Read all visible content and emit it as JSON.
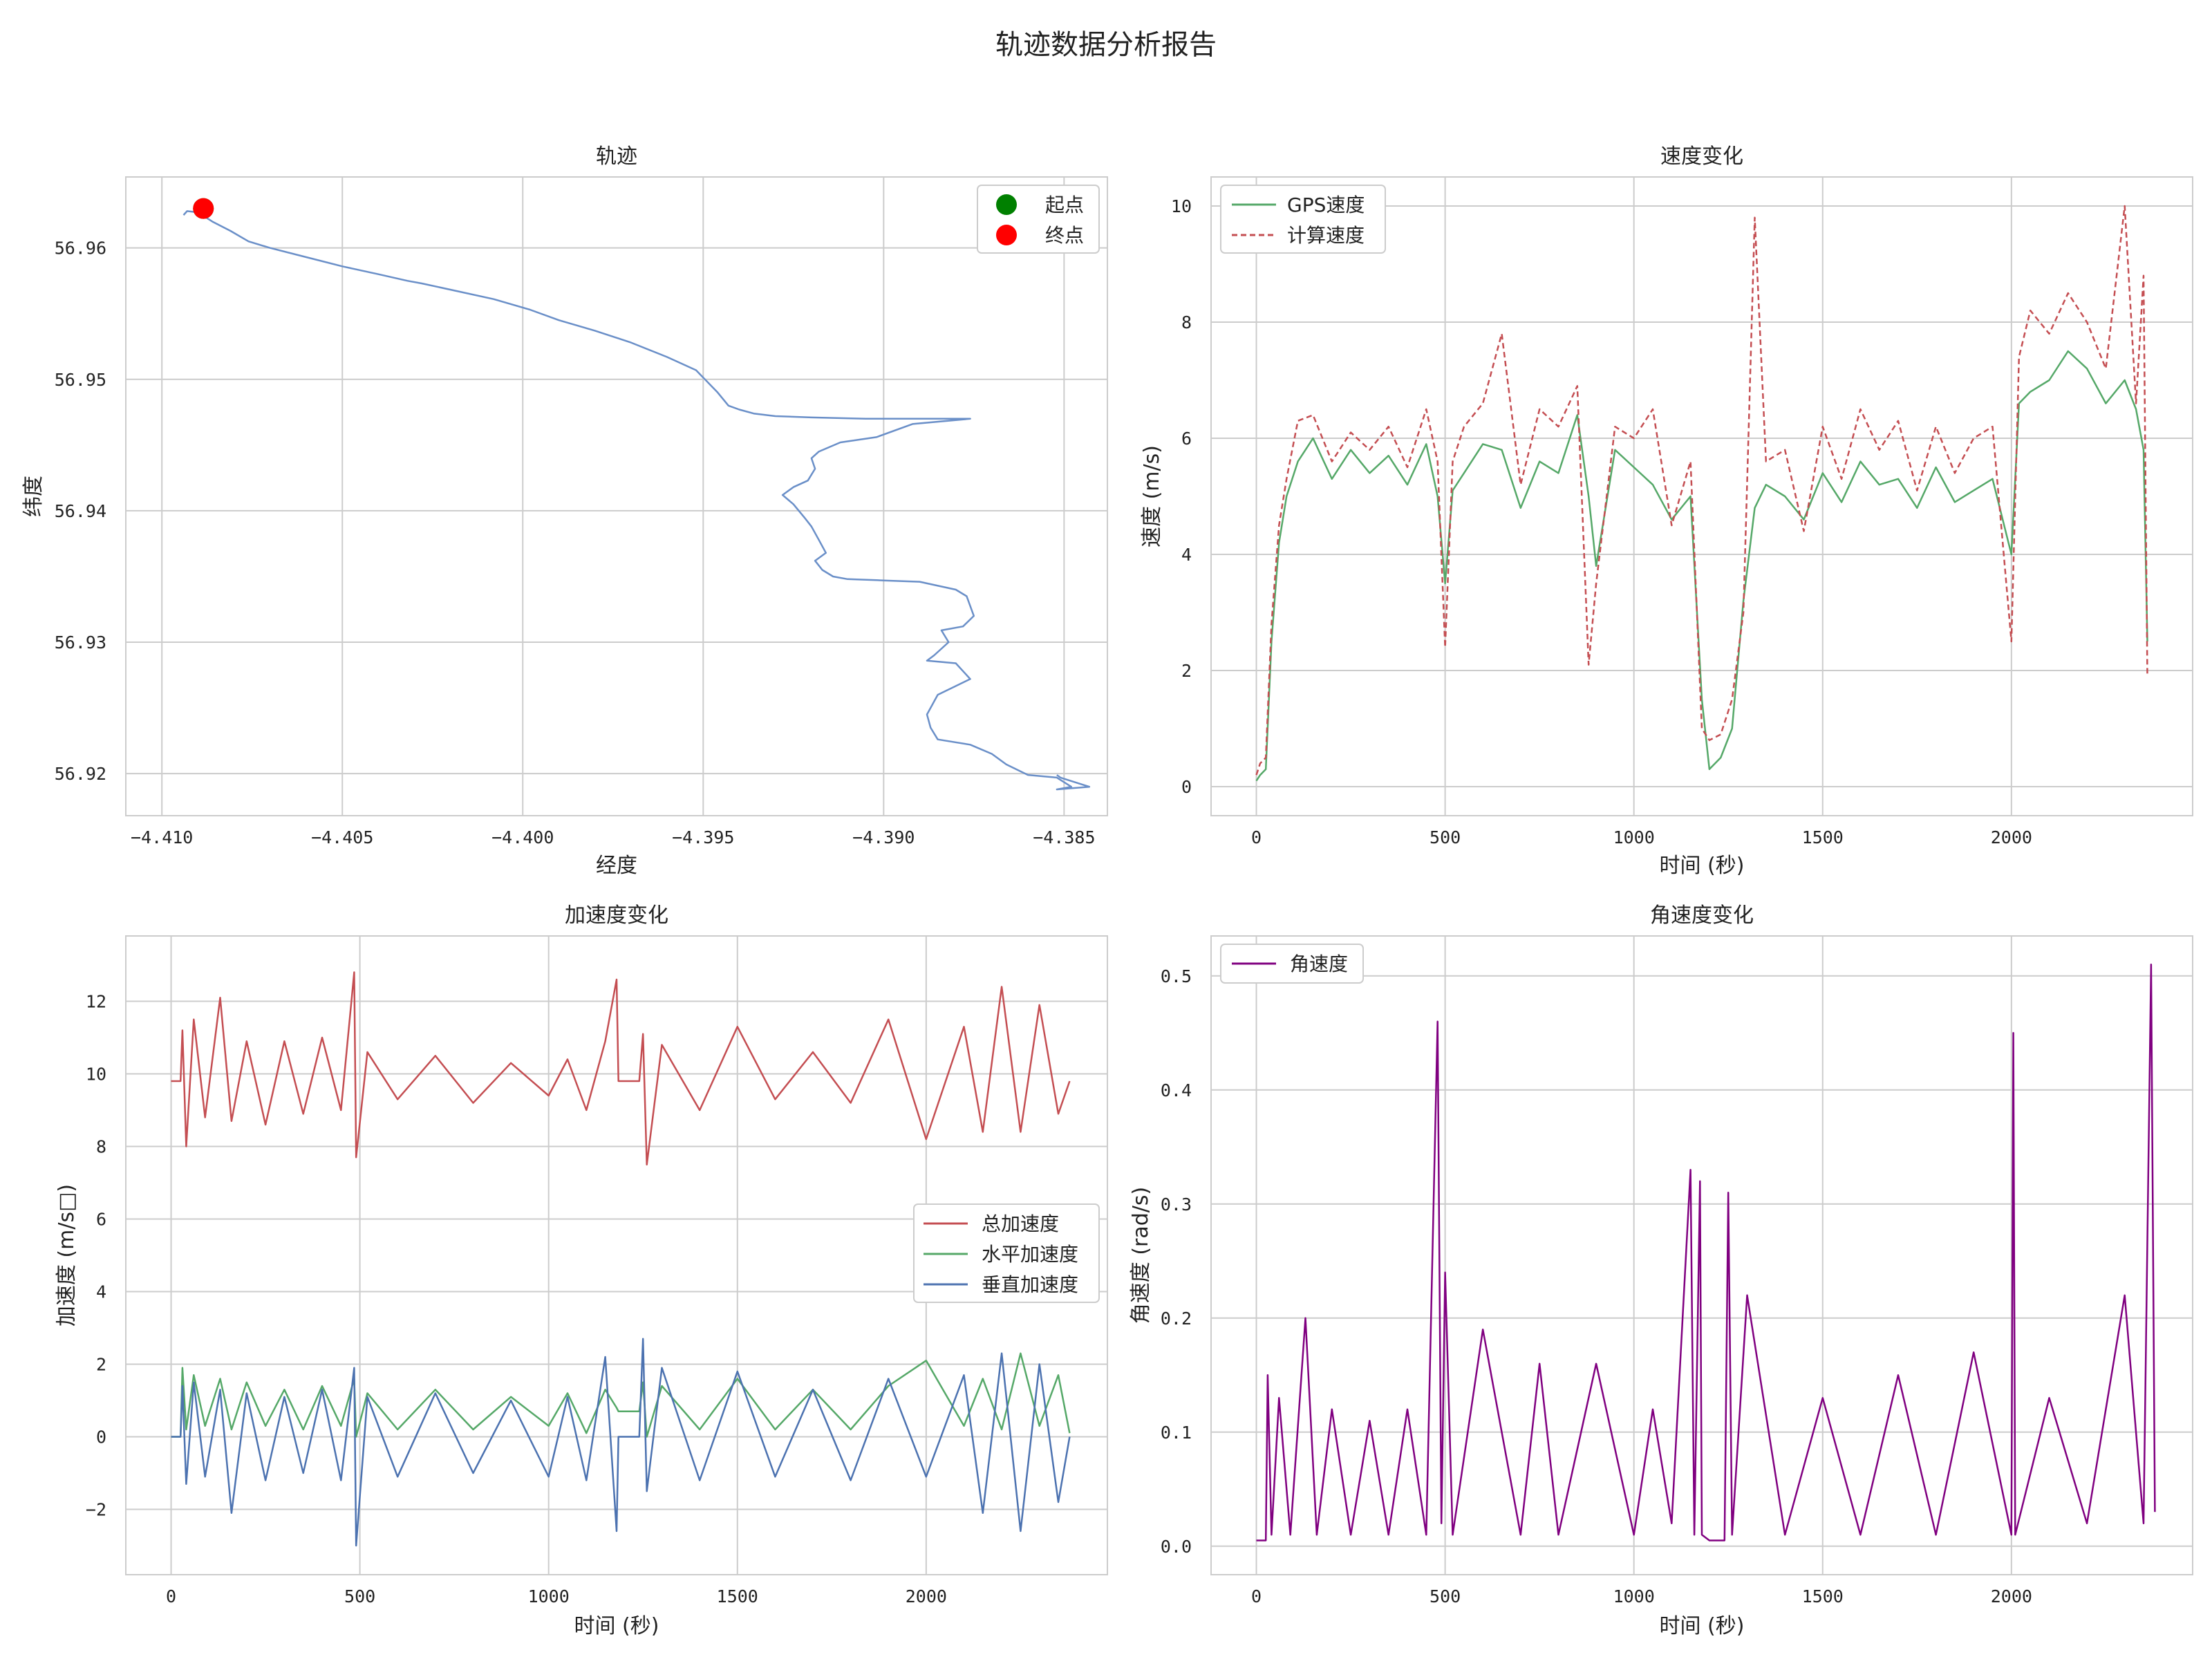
{
  "figure": {
    "suptitle": "轨迹数据分析报告"
  },
  "chart_data": [
    {
      "id": "track",
      "type": "line",
      "title": "轨迹",
      "xlabel": "经度",
      "ylabel": "纬度",
      "xlim": [
        -4.411,
        -4.3838
      ],
      "ylim": [
        56.9168,
        56.9654
      ],
      "xticks": [
        -4.41,
        -4.405,
        -4.4,
        -4.395,
        -4.39,
        -4.385
      ],
      "xtick_labels": [
        "−4.410",
        "−4.405",
        "−4.400",
        "−4.395",
        "−4.390",
        "−4.385"
      ],
      "yticks": [
        56.92,
        56.93,
        56.94,
        56.95,
        56.96
      ],
      "ytick_labels": [
        "56.92",
        "56.93",
        "56.94",
        "56.95",
        "56.96"
      ],
      "grid": true,
      "legend_position": "top-right",
      "series": [
        {
          "name": "",
          "color": "#6a8fc8",
          "x": [
            -4.4094,
            -4.4093,
            -4.409,
            -4.4086,
            -4.4081,
            -4.4076,
            -4.407,
            -4.406,
            -4.405,
            -4.404,
            -4.4032,
            -4.4028,
            -4.4018,
            -4.4008,
            -4.3998,
            -4.399,
            -4.398,
            -4.397,
            -4.396,
            -4.3952,
            -4.3946,
            -4.3943,
            -4.394,
            -4.3936,
            -4.393,
            -4.392,
            -4.3905,
            -4.3892,
            -4.3876,
            -4.3892,
            -4.3902,
            -4.3912,
            -4.3918,
            -4.392,
            -4.3919,
            -4.3921,
            -4.3925,
            -4.3928,
            -4.3925,
            -4.3922,
            -4.392,
            -4.3918,
            -4.3916,
            -4.3919,
            -4.3917,
            -4.3914,
            -4.391,
            -4.39,
            -4.389,
            -4.388,
            -4.3877,
            -4.3875,
            -4.3878,
            -4.3884,
            -4.3882,
            -4.3886,
            -4.3888,
            -4.388,
            -4.3876,
            -4.3885,
            -4.3888,
            -4.3887,
            -4.3885,
            -4.3876,
            -4.387,
            -4.3866,
            -4.386,
            -4.3852,
            -4.3848,
            -4.3852,
            -4.3843,
            -4.3851,
            -4.3852
          ],
          "y": [
            56.9625,
            56.9628,
            56.9627,
            56.962,
            56.9613,
            56.9605,
            56.96,
            56.9593,
            56.9586,
            56.958,
            56.9575,
            56.9573,
            56.9567,
            56.9561,
            56.9553,
            56.9545,
            56.9537,
            56.9528,
            56.9517,
            56.9507,
            56.949,
            56.948,
            56.9477,
            56.9474,
            56.9472,
            56.9471,
            56.947,
            56.947,
            56.947,
            56.9466,
            56.9456,
            56.9452,
            56.9445,
            56.944,
            56.9432,
            56.9423,
            56.9418,
            56.9412,
            56.9405,
            56.9395,
            56.9388,
            56.9378,
            56.9368,
            56.9362,
            56.9355,
            56.935,
            56.9348,
            56.9347,
            56.9346,
            56.934,
            56.9335,
            56.932,
            56.9312,
            56.9309,
            56.93,
            56.929,
            56.9286,
            56.9284,
            56.9272,
            56.926,
            56.9245,
            56.9235,
            56.9226,
            56.9222,
            56.9215,
            56.9207,
            56.9199,
            56.9197,
            56.919,
            56.9188,
            56.919,
            56.9197,
            56.9199
          ]
        }
      ],
      "legend": [
        {
          "label": "起点",
          "color": "#008000",
          "marker": "circle"
        },
        {
          "label": "终点",
          "color": "#ff0000",
          "marker": "circle"
        }
      ],
      "points": [
        {
          "name": "起点",
          "x": -4.40885,
          "y": 56.963,
          "color": "#008000"
        },
        {
          "name": "终点",
          "x": -4.40885,
          "y": 56.963,
          "color": "#ff0000"
        }
      ]
    },
    {
      "id": "speed",
      "type": "line",
      "title": "速度变化",
      "xlabel": "时间 (秒)",
      "ylabel": "速度 (m/s)",
      "xlim": [
        -120,
        2480
      ],
      "ylim": [
        -0.5,
        10.5
      ],
      "xticks": [
        0,
        500,
        1000,
        1500,
        2000
      ],
      "xtick_labels": [
        "0",
        "500",
        "1000",
        "1500",
        "2000"
      ],
      "yticks": [
        0,
        2,
        4,
        6,
        8,
        10
      ],
      "ytick_labels": [
        "0",
        "2",
        "4",
        "6",
        "8",
        "10"
      ],
      "grid": true,
      "legend_position": "top-left",
      "series": [
        {
          "name": "GPS速度",
          "color": "#55a868",
          "style": "solid",
          "x": [
            0,
            10,
            25,
            40,
            60,
            80,
            110,
            150,
            200,
            250,
            300,
            350,
            400,
            450,
            480,
            500,
            520,
            550,
            600,
            650,
            700,
            750,
            800,
            850,
            880,
            900,
            950,
            1000,
            1050,
            1100,
            1150,
            1180,
            1200,
            1230,
            1260,
            1290,
            1320,
            1350,
            1400,
            1450,
            1500,
            1550,
            1600,
            1650,
            1700,
            1750,
            1800,
            1850,
            1900,
            1950,
            2000,
            2020,
            2050,
            2100,
            2150,
            2200,
            2250,
            2300,
            2330,
            2350,
            2360
          ],
          "y": [
            0.1,
            0.2,
            0.3,
            2.5,
            4.2,
            5.0,
            5.6,
            6.0,
            5.3,
            5.8,
            5.4,
            5.7,
            5.2,
            5.9,
            5.0,
            3.5,
            5.1,
            5.4,
            5.9,
            5.8,
            4.8,
            5.6,
            5.4,
            6.4,
            5.0,
            3.8,
            5.8,
            5.5,
            5.2,
            4.6,
            5.0,
            1.5,
            0.3,
            0.5,
            1.0,
            3.2,
            4.8,
            5.2,
            5.0,
            4.6,
            5.4,
            4.9,
            5.6,
            5.2,
            5.3,
            4.8,
            5.5,
            4.9,
            5.1,
            5.3,
            4.0,
            6.6,
            6.8,
            7.0,
            7.5,
            7.2,
            6.6,
            7.0,
            6.5,
            5.8,
            2.5
          ]
        },
        {
          "name": "计算速度",
          "color": "#c44e52",
          "style": "dashed",
          "x": [
            0,
            10,
            25,
            40,
            60,
            80,
            110,
            150,
            200,
            250,
            300,
            350,
            400,
            450,
            480,
            500,
            520,
            550,
            600,
            650,
            700,
            750,
            800,
            850,
            880,
            900,
            950,
            1000,
            1050,
            1100,
            1150,
            1180,
            1200,
            1230,
            1260,
            1290,
            1320,
            1350,
            1400,
            1450,
            1500,
            1550,
            1600,
            1650,
            1700,
            1750,
            1800,
            1850,
            1900,
            1950,
            2000,
            2020,
            2050,
            2100,
            2150,
            2200,
            2250,
            2300,
            2330,
            2350,
            2360
          ],
          "y": [
            0.2,
            0.4,
            0.5,
            2.8,
            4.5,
            5.3,
            6.3,
            6.4,
            5.6,
            6.1,
            5.8,
            6.2,
            5.5,
            6.5,
            5.6,
            2.4,
            5.6,
            6.2,
            6.6,
            7.8,
            5.2,
            6.5,
            6.2,
            6.9,
            2.1,
            3.5,
            6.2,
            6.0,
            6.5,
            4.5,
            5.6,
            1.0,
            0.8,
            0.9,
            1.5,
            3.0,
            9.8,
            5.6,
            5.8,
            4.4,
            6.2,
            5.3,
            6.5,
            5.8,
            6.3,
            5.1,
            6.2,
            5.4,
            6.0,
            6.2,
            2.5,
            7.4,
            8.2,
            7.8,
            8.5,
            8.0,
            7.2,
            10.0,
            6.6,
            8.8,
            1.9
          ]
        }
      ]
    },
    {
      "id": "accel",
      "type": "line",
      "title": "加速度变化",
      "xlabel": "时间 (秒)",
      "ylabel": "加速度 (m/s□)",
      "xlim": [
        -120,
        2480
      ],
      "ylim": [
        -3.8,
        13.8
      ],
      "xticks": [
        0,
        500,
        1000,
        1500,
        2000
      ],
      "xtick_labels": [
        "0",
        "500",
        "1000",
        "1500",
        "2000"
      ],
      "yticks": [
        -2,
        0,
        2,
        4,
        6,
        8,
        10,
        12
      ],
      "ytick_labels": [
        "−2",
        "0",
        "2",
        "4",
        "6",
        "8",
        "10",
        "12"
      ],
      "grid": true,
      "legend_position": "center-right",
      "series": [
        {
          "name": "总加速度",
          "color": "#c44e52",
          "x": [
            0,
            25,
            30,
            40,
            60,
            90,
            130,
            160,
            200,
            250,
            300,
            350,
            400,
            450,
            485,
            490,
            520,
            600,
            700,
            800,
            900,
            1000,
            1050,
            1100,
            1150,
            1180,
            1185,
            1200,
            1240,
            1250,
            1260,
            1300,
            1400,
            1500,
            1600,
            1700,
            1800,
            1900,
            2000,
            2100,
            2150,
            2200,
            2250,
            2300,
            2350,
            2380
          ],
          "y": [
            9.8,
            9.8,
            11.2,
            8.0,
            11.5,
            8.8,
            12.1,
            8.7,
            10.9,
            8.6,
            10.9,
            8.9,
            11.0,
            9.0,
            12.8,
            7.7,
            10.6,
            9.3,
            10.5,
            9.2,
            10.3,
            9.4,
            10.4,
            9.0,
            10.9,
            12.6,
            9.8,
            9.8,
            9.8,
            11.1,
            7.5,
            10.8,
            9.0,
            11.3,
            9.3,
            10.6,
            9.2,
            11.5,
            8.2,
            11.3,
            8.4,
            12.4,
            8.4,
            11.9,
            8.9,
            9.8
          ]
        },
        {
          "name": "水平加速度",
          "color": "#55a868",
          "x": [
            0,
            25,
            30,
            40,
            60,
            90,
            130,
            160,
            200,
            250,
            300,
            350,
            400,
            450,
            485,
            490,
            520,
            600,
            700,
            800,
            900,
            1000,
            1050,
            1100,
            1150,
            1180,
            1185,
            1200,
            1240,
            1250,
            1260,
            1300,
            1400,
            1500,
            1600,
            1700,
            1800,
            1900,
            2000,
            2100,
            2150,
            2200,
            2250,
            2300,
            2350,
            2380
          ],
          "y": [
            0.0,
            0.0,
            1.9,
            0.2,
            1.7,
            0.3,
            1.6,
            0.2,
            1.5,
            0.3,
            1.3,
            0.2,
            1.4,
            0.3,
            1.6,
            0.0,
            1.2,
            0.2,
            1.3,
            0.2,
            1.1,
            0.3,
            1.2,
            0.1,
            1.3,
            0.8,
            0.7,
            0.7,
            0.7,
            1.5,
            0.0,
            1.4,
            0.2,
            1.6,
            0.2,
            1.3,
            0.2,
            1.4,
            2.1,
            0.3,
            1.6,
            0.2,
            2.3,
            0.3,
            1.7,
            0.1
          ]
        },
        {
          "name": "垂直加速度",
          "color": "#4c72b0",
          "x": [
            0,
            25,
            30,
            40,
            60,
            90,
            130,
            160,
            200,
            250,
            300,
            350,
            400,
            450,
            485,
            490,
            520,
            600,
            700,
            800,
            900,
            1000,
            1050,
            1100,
            1150,
            1180,
            1185,
            1200,
            1240,
            1250,
            1260,
            1300,
            1400,
            1500,
            1600,
            1700,
            1800,
            1900,
            2000,
            2100,
            2150,
            2200,
            2250,
            2300,
            2350,
            2380
          ],
          "y": [
            0.0,
            0.0,
            1.4,
            -1.3,
            1.5,
            -1.1,
            1.3,
            -2.1,
            1.2,
            -1.2,
            1.1,
            -1.0,
            1.3,
            -1.2,
            1.9,
            -3.0,
            1.1,
            -1.1,
            1.2,
            -1.0,
            1.0,
            -1.1,
            1.1,
            -1.2,
            2.2,
            -2.6,
            0.0,
            0.0,
            0.0,
            2.7,
            -1.5,
            1.9,
            -1.2,
            1.8,
            -1.1,
            1.3,
            -1.2,
            1.6,
            -1.1,
            1.7,
            -2.1,
            2.3,
            -2.6,
            2.0,
            -1.8,
            0.0
          ]
        }
      ]
    },
    {
      "id": "angular",
      "type": "line",
      "title": "角速度变化",
      "xlabel": "时间 (秒)",
      "ylabel": "角速度 (rad/s)",
      "xlim": [
        -120,
        2480
      ],
      "ylim": [
        -0.025,
        0.535
      ],
      "xticks": [
        0,
        500,
        1000,
        1500,
        2000
      ],
      "xtick_labels": [
        "0",
        "500",
        "1000",
        "1500",
        "2000"
      ],
      "yticks": [
        0.0,
        0.1,
        0.2,
        0.3,
        0.4,
        0.5
      ],
      "ytick_labels": [
        "0.0",
        "0.1",
        "0.2",
        "0.3",
        "0.4",
        "0.5"
      ],
      "grid": true,
      "legend_position": "top-left",
      "series": [
        {
          "name": "角速度",
          "color": "#800080",
          "x": [
            0,
            25,
            30,
            40,
            60,
            90,
            130,
            160,
            200,
            250,
            300,
            350,
            400,
            450,
            480,
            490,
            500,
            520,
            600,
            700,
            750,
            800,
            900,
            1000,
            1050,
            1100,
            1150,
            1160,
            1175,
            1180,
            1200,
            1240,
            1250,
            1260,
            1300,
            1400,
            1500,
            1600,
            1700,
            1800,
            1900,
            2000,
            2005,
            2010,
            2100,
            2200,
            2300,
            2350,
            2370,
            2380
          ],
          "y": [
            0.005,
            0.005,
            0.15,
            0.01,
            0.13,
            0.01,
            0.2,
            0.01,
            0.12,
            0.01,
            0.11,
            0.01,
            0.12,
            0.01,
            0.46,
            0.02,
            0.24,
            0.01,
            0.19,
            0.01,
            0.16,
            0.01,
            0.16,
            0.01,
            0.12,
            0.02,
            0.33,
            0.01,
            0.32,
            0.01,
            0.005,
            0.005,
            0.31,
            0.01,
            0.22,
            0.01,
            0.13,
            0.01,
            0.15,
            0.01,
            0.17,
            0.01,
            0.45,
            0.01,
            0.13,
            0.02,
            0.22,
            0.02,
            0.51,
            0.03
          ]
        }
      ]
    }
  ]
}
